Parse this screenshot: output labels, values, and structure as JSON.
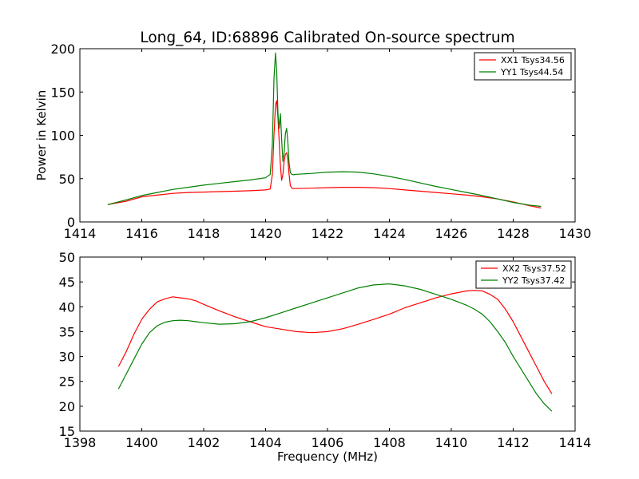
{
  "title": "Long_64, ID:68896 Calibrated On-source spectrum",
  "chart_data": [
    {
      "type": "line",
      "title": "Long_64, ID:68896 Calibrated On-source spectrum",
      "xlabel": "",
      "ylabel": "Power in Kelvin",
      "xlim": [
        1414,
        1430
      ],
      "ylim": [
        0,
        200
      ],
      "xticks": [
        1414,
        1416,
        1418,
        1420,
        1422,
        1424,
        1426,
        1428,
        1430
      ],
      "yticks": [
        0,
        50,
        100,
        150,
        200
      ],
      "legend_position": "top-right",
      "grid": false,
      "series": [
        {
          "name": "XX1 Tsys34.56",
          "color": "#ff0000",
          "x": [
            1414.9,
            1415.5,
            1416.0,
            1416.5,
            1417.0,
            1417.5,
            1418.0,
            1418.5,
            1419.0,
            1419.5,
            1420.0,
            1420.15,
            1420.22,
            1420.27,
            1420.32,
            1420.36,
            1420.4,
            1420.44,
            1420.48,
            1420.52,
            1420.56,
            1420.6,
            1420.64,
            1420.68,
            1420.72,
            1420.76,
            1420.8,
            1420.85,
            1420.9,
            1421.0,
            1421.5,
            1422.0,
            1422.5,
            1423.0,
            1423.5,
            1424.0,
            1424.5,
            1425.0,
            1425.5,
            1426.0,
            1426.5,
            1427.0,
            1427.5,
            1428.0,
            1428.5,
            1428.9
          ],
          "y": [
            20,
            24,
            29,
            31,
            33,
            34,
            34.5,
            35,
            35.5,
            36,
            37,
            38,
            55,
            100,
            135,
            140,
            120,
            92,
            65,
            48,
            55,
            70,
            78,
            80,
            72,
            55,
            42,
            39,
            38.5,
            38.5,
            39,
            39.5,
            40,
            40,
            39.5,
            38.5,
            37,
            35.5,
            34,
            32.5,
            31,
            29,
            26.5,
            23,
            19,
            16
          ]
        },
        {
          "name": "YY1 Tsys44.54",
          "color": "#008000",
          "x": [
            1414.9,
            1415.5,
            1416.0,
            1416.5,
            1417.0,
            1417.5,
            1418.0,
            1418.5,
            1419.0,
            1419.5,
            1420.0,
            1420.15,
            1420.22,
            1420.27,
            1420.32,
            1420.36,
            1420.4,
            1420.44,
            1420.48,
            1420.52,
            1420.56,
            1420.6,
            1420.64,
            1420.68,
            1420.72,
            1420.76,
            1420.8,
            1420.85,
            1420.9,
            1421.0,
            1421.5,
            1422.0,
            1422.5,
            1423.0,
            1423.5,
            1424.0,
            1424.5,
            1425.0,
            1425.5,
            1426.0,
            1426.5,
            1427.0,
            1427.5,
            1428.0,
            1428.5,
            1428.9
          ],
          "y": [
            20,
            25.5,
            30.5,
            34,
            37.5,
            40,
            42.5,
            44.5,
            46.5,
            48.5,
            51,
            55,
            90,
            165,
            195,
            175,
            125,
            108,
            125,
            95,
            70,
            80,
            102,
            108,
            92,
            68,
            57,
            55,
            54.5,
            55,
            56,
            57.5,
            58,
            57.5,
            55.5,
            52.5,
            49,
            45,
            41,
            37.5,
            34,
            30.5,
            26.5,
            22.5,
            19.5,
            18
          ]
        }
      ]
    },
    {
      "type": "line",
      "title": "",
      "xlabel": "Frequency (MHz)",
      "ylabel": "",
      "xlim": [
        1398,
        1414
      ],
      "ylim": [
        15,
        50
      ],
      "xticks": [
        1398,
        1400,
        1402,
        1404,
        1406,
        1408,
        1410,
        1412,
        1414
      ],
      "yticks": [
        15,
        20,
        25,
        30,
        35,
        40,
        45,
        50
      ],
      "legend_position": "top-right",
      "grid": false,
      "series": [
        {
          "name": "XX2 Tsys37.52",
          "color": "#ff0000",
          "x": [
            1399.25,
            1399.5,
            1399.75,
            1400.0,
            1400.25,
            1400.5,
            1400.75,
            1401.0,
            1401.25,
            1401.5,
            1401.75,
            1402.0,
            1402.5,
            1403.0,
            1403.5,
            1404.0,
            1404.5,
            1405.0,
            1405.5,
            1406.0,
            1406.5,
            1407.0,
            1407.5,
            1408.0,
            1408.5,
            1409.0,
            1409.5,
            1410.0,
            1410.5,
            1410.75,
            1411.0,
            1411.25,
            1411.5,
            1411.75,
            1412.0,
            1412.25,
            1412.5,
            1412.75,
            1413.0,
            1413.25
          ],
          "y": [
            28,
            31,
            34.5,
            37.5,
            39.5,
            41,
            41.6,
            42,
            41.8,
            41.6,
            41.2,
            40.5,
            39.2,
            38,
            37,
            36,
            35.5,
            35,
            34.8,
            35,
            35.6,
            36.5,
            37.5,
            38.5,
            39.8,
            40.8,
            41.8,
            42.6,
            43.2,
            43.3,
            43.2,
            42.5,
            41.5,
            39.5,
            37,
            34,
            31,
            28,
            25,
            22.5
          ]
        },
        {
          "name": "YY2 Tsys37.42",
          "color": "#008000",
          "x": [
            1399.25,
            1399.5,
            1399.75,
            1400.0,
            1400.25,
            1400.5,
            1400.75,
            1401.0,
            1401.25,
            1401.5,
            1401.75,
            1402.0,
            1402.5,
            1403.0,
            1403.5,
            1404.0,
            1404.5,
            1405.0,
            1405.5,
            1406.0,
            1406.5,
            1407.0,
            1407.5,
            1408.0,
            1408.5,
            1409.0,
            1409.5,
            1410.0,
            1410.5,
            1410.75,
            1411.0,
            1411.25,
            1411.5,
            1411.75,
            1412.0,
            1412.25,
            1412.5,
            1412.75,
            1413.0,
            1413.25
          ],
          "y": [
            23.5,
            26.5,
            29.5,
            32.5,
            34.8,
            36.2,
            36.9,
            37.2,
            37.3,
            37.2,
            37,
            36.8,
            36.5,
            36.6,
            37,
            37.8,
            38.8,
            39.8,
            40.8,
            41.8,
            42.8,
            43.8,
            44.4,
            44.6,
            44.2,
            43.5,
            42.5,
            41.5,
            40.3,
            39.5,
            38.5,
            37,
            35,
            32.8,
            30,
            27.5,
            25,
            22.5,
            20.5,
            19
          ]
        }
      ]
    }
  ]
}
